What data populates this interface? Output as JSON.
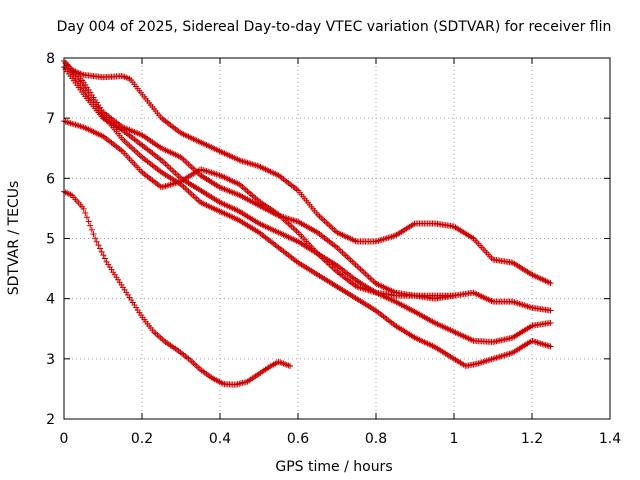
{
  "chart_data": {
    "type": "scatter",
    "title": "Day 004 of 2025, Sidereal Day-to-day VTEC variation (SDTVAR) for receiver flin",
    "xlabel": "GPS time / hours",
    "ylabel": "SDTVAR / TECUs",
    "xlim": [
      0,
      1.4
    ],
    "ylim": [
      2,
      8
    ],
    "xticks": [
      0,
      0.2,
      0.4,
      0.6,
      0.8,
      1,
      1.2,
      1.4
    ],
    "xtick_labels": [
      "0",
      "0.2",
      "0.4",
      "0.6",
      "0.8",
      "1",
      "1.2",
      "1.4"
    ],
    "yticks": [
      2,
      3,
      4,
      5,
      6,
      7,
      8
    ],
    "ytick_labels": [
      "2",
      "3",
      "4",
      "5",
      "6",
      "7",
      "8"
    ],
    "grid": true,
    "marker": "+",
    "color": "#cc0000",
    "series": [
      {
        "name": "s1",
        "x": [
          0,
          0.02,
          0.05,
          0.08,
          0.11,
          0.14,
          0.17,
          0.2,
          0.23,
          0.26,
          0.29,
          0.32,
          0.35,
          0.38,
          0.41,
          0.44,
          0.47,
          0.5,
          0.53,
          0.55,
          0.58
        ],
        "y": [
          5.78,
          5.72,
          5.5,
          5.0,
          4.6,
          4.3,
          4.0,
          3.7,
          3.45,
          3.28,
          3.15,
          3.0,
          2.82,
          2.68,
          2.58,
          2.57,
          2.62,
          2.75,
          2.88,
          2.95,
          2.88
        ]
      },
      {
        "name": "s2",
        "x": [
          0,
          0.05,
          0.1,
          0.15,
          0.2,
          0.25,
          0.3,
          0.35,
          0.4,
          0.45,
          0.5,
          0.55,
          0.6,
          0.65,
          0.7,
          0.75,
          0.8,
          0.85,
          0.9,
          0.95,
          1.0
        ],
        "y": [
          6.95,
          6.85,
          6.7,
          6.45,
          6.1,
          5.85,
          5.95,
          6.15,
          6.05,
          5.9,
          5.62,
          5.4,
          5.1,
          4.75,
          4.45,
          4.2,
          4.1,
          4.05,
          4.05,
          4.05,
          4.05
        ]
      },
      {
        "name": "s3",
        "x": [
          0,
          0.05,
          0.1,
          0.15,
          0.2,
          0.25,
          0.3,
          0.35,
          0.4,
          0.45,
          0.5,
          0.55,
          0.6,
          0.65,
          0.7,
          0.75,
          0.8,
          0.85,
          0.9,
          0.95,
          1.0,
          1.03,
          1.06,
          1.1,
          1.15,
          1.2,
          1.25
        ],
        "y": [
          7.95,
          7.5,
          7.05,
          6.65,
          6.35,
          6.1,
          5.9,
          5.6,
          5.45,
          5.3,
          5.1,
          4.85,
          4.6,
          4.4,
          4.2,
          4.0,
          3.8,
          3.55,
          3.35,
          3.2,
          3.0,
          2.88,
          2.92,
          3.0,
          3.1,
          3.3,
          3.2
        ]
      },
      {
        "name": "s4",
        "x": [
          0,
          0.05,
          0.1,
          0.15,
          0.2,
          0.25,
          0.3,
          0.35,
          0.4,
          0.45,
          0.5,
          0.55,
          0.6,
          0.65,
          0.7,
          0.75,
          0.8,
          0.85,
          0.9,
          0.95,
          1.0,
          1.05,
          1.1,
          1.15,
          1.2,
          1.25
        ],
        "y": [
          7.85,
          7.4,
          7.0,
          6.8,
          6.55,
          6.3,
          6.0,
          5.8,
          5.6,
          5.45,
          5.25,
          5.1,
          4.95,
          4.75,
          4.55,
          4.3,
          4.1,
          3.95,
          3.78,
          3.6,
          3.45,
          3.3,
          3.28,
          3.35,
          3.55,
          3.6
        ]
      },
      {
        "name": "s5",
        "x": [
          0,
          0.05,
          0.1,
          0.15,
          0.2,
          0.25,
          0.3,
          0.35,
          0.4,
          0.45,
          0.5,
          0.55,
          0.6,
          0.65,
          0.7,
          0.75,
          0.8,
          0.85,
          0.9,
          0.95,
          1.0,
          1.05,
          1.1,
          1.15,
          1.2,
          1.25
        ],
        "y": [
          7.95,
          7.6,
          7.1,
          6.85,
          6.72,
          6.5,
          6.35,
          6.05,
          5.85,
          5.72,
          5.55,
          5.38,
          5.28,
          5.1,
          4.85,
          4.55,
          4.25,
          4.1,
          4.05,
          4.0,
          4.05,
          4.1,
          3.95,
          3.95,
          3.85,
          3.8
        ]
      },
      {
        "name": "s6",
        "x": [
          0,
          0.05,
          0.1,
          0.15,
          0.17,
          0.2,
          0.25,
          0.3,
          0.35,
          0.4,
          0.45,
          0.5,
          0.55,
          0.6,
          0.65,
          0.7,
          0.75,
          0.8,
          0.85,
          0.9,
          0.95,
          1.0,
          1.05,
          1.1,
          1.15,
          1.2,
          1.25
        ],
        "y": [
          7.85,
          7.72,
          7.68,
          7.7,
          7.65,
          7.4,
          7.0,
          6.75,
          6.6,
          6.45,
          6.3,
          6.2,
          6.05,
          5.8,
          5.4,
          5.1,
          4.95,
          4.95,
          5.05,
          5.25,
          5.25,
          5.2,
          5.0,
          4.65,
          4.6,
          4.4,
          4.25
        ]
      }
    ]
  }
}
